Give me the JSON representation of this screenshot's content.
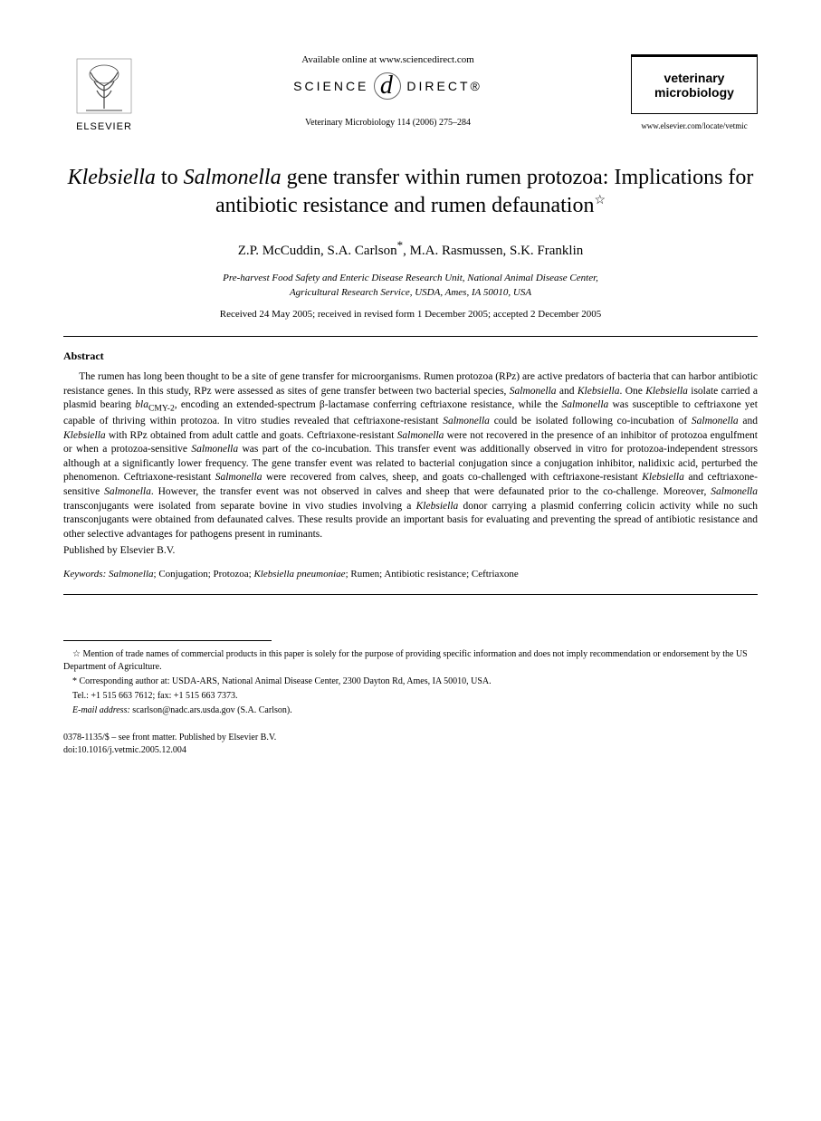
{
  "header": {
    "publisher_logo_text": "ELSEVIER",
    "available_text": "Available online at www.sciencedirect.com",
    "sciencedirect_left": "SCIENCE",
    "sciencedirect_right": "DIRECT®",
    "citation": "Veterinary Microbiology 114 (2006) 275–284",
    "journal_name_line1": "veterinary",
    "journal_name_line2": "microbiology",
    "journal_url": "www.elsevier.com/locate/vetmic"
  },
  "article": {
    "title_html": "<em>Klebsiella</em> to <em>Salmonella</em> gene transfer within rumen protozoa: Implications for antibiotic resistance and rumen defaunation<span class=\"star\">☆</span>",
    "authors_html": "Z.P. McCuddin, S.A. Carlson<span class=\"asterisk\">*</span>, M.A. Rasmussen, S.K. Franklin",
    "affiliation_line1": "Pre-harvest Food Safety and Enteric Disease Research Unit, National Animal Disease Center,",
    "affiliation_line2": "Agricultural Research Service, USDA, Ames, IA 50010, USA",
    "dates": "Received 24 May 2005; received in revised form 1 December 2005; accepted 2 December 2005"
  },
  "abstract": {
    "heading": "Abstract",
    "body_html": "The rumen has long been thought to be a site of gene transfer for microorganisms. Rumen protozoa (RPz) are active predators of bacteria that can harbor antibiotic resistance genes. In this study, RPz were assessed as sites of gene transfer between two bacterial species, <em>Salmonella</em> and <em>Klebsiella</em>. One <em>Klebsiella</em> isolate carried a plasmid bearing <em>bla</em><sub>CMY-2</sub>, encoding an extended-spectrum β-lactamase conferring ceftriaxone resistance, while the <em>Salmonella</em> was susceptible to ceftriaxone yet capable of thriving within protozoa. In vitro studies revealed that ceftriaxone-resistant <em>Salmonella</em> could be isolated following co-incubation of <em>Salmonella</em> and <em>Klebsiella</em> with RPz obtained from adult cattle and goats. Ceftriaxone-resistant <em>Salmonella</em> were not recovered in the presence of an inhibitor of protozoa engulfment or when a protozoa-sensitive <em>Salmonella</em> was part of the co-incubation. This transfer event was additionally observed in vitro for protozoa-independent stressors although at a significantly lower frequency. The gene transfer event was related to bacterial conjugation since a conjugation inhibitor, nalidixic acid, perturbed the phenomenon. Ceftriaxone-resistant <em>Salmonella</em> were recovered from calves, sheep, and goats co-challenged with ceftriaxone-resistant <em>Klebsiella</em> and ceftriaxone-sensitive <em>Salmonella</em>. However, the transfer event was not observed in calves and sheep that were defaunated prior to the co-challenge. Moreover, <em>Salmonella</em> transconjugants were isolated from separate bovine in vivo studies involving a <em>Klebsiella</em> donor carrying a plasmid conferring colicin activity while no such transconjugants were obtained from defaunated calves. These results provide an important basis for evaluating and preventing the spread of antibiotic resistance and other selective advantages for pathogens present in ruminants.",
    "published_by": "Published by Elsevier B.V."
  },
  "keywords": {
    "label": "Keywords:",
    "list_html": "<em>Salmonella</em>; Conjugation; Protozoa; <em>Klebsiella pneumoniae</em>; Rumen; Antibiotic resistance; Ceftriaxone"
  },
  "footnotes": {
    "star": "Mention of trade names of commercial products in this paper is solely for the purpose of providing specific information and does not imply recommendation or endorsement by the US Department of Agriculture.",
    "corresponding": "Corresponding author at: USDA-ARS, National Animal Disease Center, 2300 Dayton Rd, Ames, IA 50010, USA.",
    "tel": "Tel.: +1 515 663 7612; fax: +1 515 663 7373.",
    "email_label": "E-mail address:",
    "email": "scarlson@nadc.ars.usda.gov (S.A. Carlson)."
  },
  "footer": {
    "line1": "0378-1135/$ – see front matter. Published by Elsevier B.V.",
    "line2": "doi:10.1016/j.vetmic.2005.12.004"
  }
}
